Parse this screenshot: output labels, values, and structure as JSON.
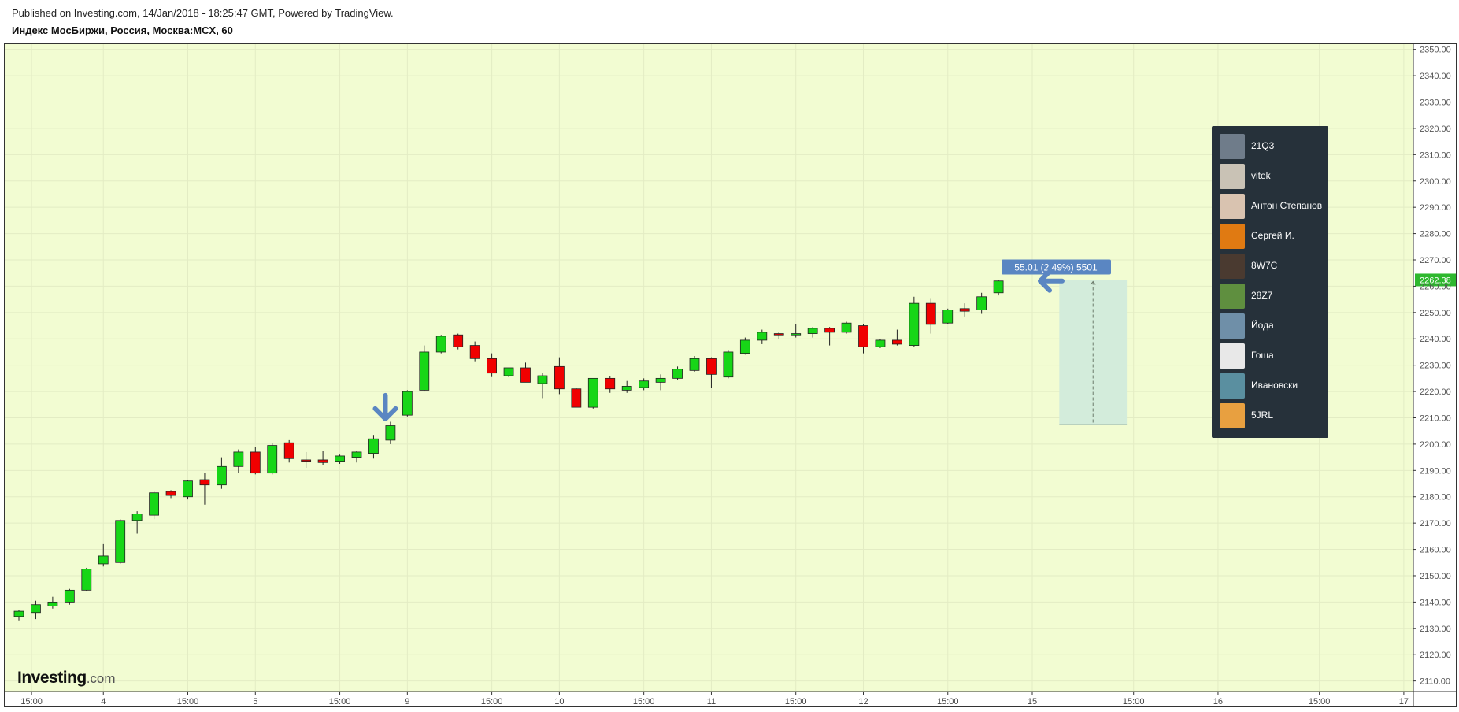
{
  "header": {
    "published": "Published on Investing.com, 14/Jan/2018 - 18:25:47 GMT, Powered by TradingView.",
    "symbol": "Индекс МосБиржи, Россия, Москва:MCX, 60"
  },
  "logo": {
    "main": "Investing",
    "domain": ".com"
  },
  "colors": {
    "background": "#f2fcd2",
    "up": "#17d617",
    "down": "#f00000",
    "price_line": "#2eb82e",
    "annotation": "#5a86c2",
    "legend_bg": "#26313a"
  },
  "legend": {
    "items": [
      {
        "name": "21Q3",
        "avatar_color": "#6f7c8a"
      },
      {
        "name": "vitek",
        "avatar_color": "#c9c2b5"
      },
      {
        "name": "Антон Степанов",
        "avatar_color": "#d9c3b0"
      },
      {
        "name": "Сергей И.",
        "avatar_color": "#e07a12"
      },
      {
        "name": "8W7C",
        "avatar_color": "#4a3a30"
      },
      {
        "name": "28Z7",
        "avatar_color": "#5f8f3f"
      },
      {
        "name": "Йода",
        "avatar_color": "#6f8fa8"
      },
      {
        "name": "Гоша",
        "avatar_color": "#e8e8e8"
      },
      {
        "name": "Ивановски",
        "avatar_color": "#5a8fa0"
      },
      {
        "name": "5JRL",
        "avatar_color": "#e8a040"
      }
    ]
  },
  "chart_data": {
    "type": "candlestick",
    "title": "Индекс МосБиржи, Россия, Москва:MCX, 60",
    "ylim": [
      2106,
      2352
    ],
    "yticks": [
      2110,
      2120,
      2130,
      2140,
      2150,
      2160,
      2170,
      2180,
      2190,
      2200,
      2210,
      2220,
      2230,
      2240,
      2250,
      2260,
      2270,
      2280,
      2290,
      2300,
      2310,
      2320,
      2330,
      2340,
      2350
    ],
    "ytick_labels": [
      "2110.00",
      "2120.00",
      "2130.00",
      "2140.00",
      "2150.00",
      "2160.00",
      "2170.00",
      "2180.00",
      "2190.00",
      "2200.00",
      "2210.00",
      "2220.00",
      "2230.00",
      "2240.00",
      "2250.00",
      "2260.00",
      "2270.00",
      "2280.00",
      "2290.00",
      "2300.00",
      "2310.00",
      "2320.00",
      "2330.00",
      "2340.00",
      "2350.00"
    ],
    "xticks": [
      {
        "bar": 0.75,
        "label": "15:00"
      },
      {
        "bar": 5,
        "label": "4"
      },
      {
        "bar": 10,
        "label": "15:00"
      },
      {
        "bar": 14,
        "label": "5"
      },
      {
        "bar": 19,
        "label": "15:00"
      },
      {
        "bar": 23,
        "label": "9"
      },
      {
        "bar": 28,
        "label": "15:00"
      },
      {
        "bar": 32,
        "label": "10"
      },
      {
        "bar": 37,
        "label": "15:00"
      },
      {
        "bar": 41,
        "label": "11"
      },
      {
        "bar": 46,
        "label": "15:00"
      },
      {
        "bar": 50,
        "label": "12"
      },
      {
        "bar": 55,
        "label": "15:00"
      },
      {
        "bar": 60,
        "label": "15"
      },
      {
        "bar": 66,
        "label": "15:00"
      },
      {
        "bar": 71,
        "label": "16"
      },
      {
        "bar": 77,
        "label": "15:00"
      },
      {
        "bar": 82,
        "label": "17"
      }
    ],
    "candles": [
      {
        "o": 2134.5,
        "h": 2137.0,
        "l": 2133.0,
        "c": 2136.5
      },
      {
        "o": 2136.0,
        "h": 2140.5,
        "l": 2133.5,
        "c": 2139.0
      },
      {
        "o": 2138.5,
        "h": 2142.0,
        "l": 2137.5,
        "c": 2140.0
      },
      {
        "o": 2140.0,
        "h": 2145.0,
        "l": 2139.0,
        "c": 2144.5
      },
      {
        "o": 2144.5,
        "h": 2153.0,
        "l": 2144.0,
        "c": 2152.5
      },
      {
        "o": 2154.5,
        "h": 2162.0,
        "l": 2153.5,
        "c": 2157.5
      },
      {
        "o": 2155.0,
        "h": 2171.5,
        "l": 2154.5,
        "c": 2171.0
      },
      {
        "o": 2171.0,
        "h": 2174.5,
        "l": 2166.0,
        "c": 2173.5
      },
      {
        "o": 2173.0,
        "h": 2182.0,
        "l": 2171.5,
        "c": 2181.5
      },
      {
        "o": 2182.0,
        "h": 2182.5,
        "l": 2179.5,
        "c": 2180.5
      },
      {
        "o": 2180.0,
        "h": 2186.5,
        "l": 2179.0,
        "c": 2186.0
      },
      {
        "o": 2186.5,
        "h": 2189.0,
        "l": 2177.0,
        "c": 2184.5
      },
      {
        "o": 2184.5,
        "h": 2195.0,
        "l": 2183.0,
        "c": 2191.5
      },
      {
        "o": 2191.5,
        "h": 2198.0,
        "l": 2189.0,
        "c": 2197.0
      },
      {
        "o": 2197.0,
        "h": 2199.0,
        "l": 2188.5,
        "c": 2189.0
      },
      {
        "o": 2189.0,
        "h": 2200.5,
        "l": 2188.5,
        "c": 2199.5
      },
      {
        "o": 2200.5,
        "h": 2201.5,
        "l": 2193.0,
        "c": 2194.5
      },
      {
        "o": 2194.0,
        "h": 2197.0,
        "l": 2191.0,
        "c": 2193.5
      },
      {
        "o": 2194.0,
        "h": 2197.5,
        "l": 2192.0,
        "c": 2193.0
      },
      {
        "o": 2193.5,
        "h": 2196.0,
        "l": 2192.5,
        "c": 2195.5
      },
      {
        "o": 2195.0,
        "h": 2197.5,
        "l": 2193.0,
        "c": 2197.0
      },
      {
        "o": 2196.5,
        "h": 2203.5,
        "l": 2194.5,
        "c": 2202.0
      },
      {
        "o": 2201.5,
        "h": 2208.5,
        "l": 2200.0,
        "c": 2207.0
      },
      {
        "o": 2211.0,
        "h": 2220.5,
        "l": 2210.5,
        "c": 2220.0
      },
      {
        "o": 2220.5,
        "h": 2237.5,
        "l": 2220.0,
        "c": 2235.0
      },
      {
        "o": 2235.0,
        "h": 2241.5,
        "l": 2234.5,
        "c": 2241.0
      },
      {
        "o": 2241.5,
        "h": 2242.0,
        "l": 2236.0,
        "c": 2237.0
      },
      {
        "o": 2237.5,
        "h": 2239.0,
        "l": 2231.5,
        "c": 2232.5
      },
      {
        "o": 2232.5,
        "h": 2234.5,
        "l": 2225.5,
        "c": 2227.0
      },
      {
        "o": 2226.0,
        "h": 2229.0,
        "l": 2225.5,
        "c": 2229.0
      },
      {
        "o": 2229.0,
        "h": 2231.0,
        "l": 2223.5,
        "c": 2223.5
      },
      {
        "o": 2223.0,
        "h": 2227.0,
        "l": 2217.5,
        "c": 2226.0
      },
      {
        "o": 2229.5,
        "h": 2233.0,
        "l": 2219.0,
        "c": 2221.0
      },
      {
        "o": 2221.0,
        "h": 2221.5,
        "l": 2214.0,
        "c": 2214.0
      },
      {
        "o": 2214.0,
        "h": 2224.5,
        "l": 2213.5,
        "c": 2225.0
      },
      {
        "o": 2225.0,
        "h": 2226.0,
        "l": 2219.5,
        "c": 2221.0
      },
      {
        "o": 2220.5,
        "h": 2224.0,
        "l": 2219.5,
        "c": 2222.0
      },
      {
        "o": 2221.5,
        "h": 2225.0,
        "l": 2220.5,
        "c": 2224.0
      },
      {
        "o": 2223.5,
        "h": 2226.5,
        "l": 2220.5,
        "c": 2225.0
      },
      {
        "o": 2225.0,
        "h": 2229.5,
        "l": 2224.5,
        "c": 2228.5
      },
      {
        "o": 2228.0,
        "h": 2233.5,
        "l": 2227.5,
        "c": 2232.5
      },
      {
        "o": 2232.5,
        "h": 2233.0,
        "l": 2221.5,
        "c": 2226.5
      },
      {
        "o": 2225.5,
        "h": 2235.5,
        "l": 2225.0,
        "c": 2235.0
      },
      {
        "o": 2234.5,
        "h": 2240.5,
        "l": 2234.0,
        "c": 2239.5
      },
      {
        "o": 2239.5,
        "h": 2243.5,
        "l": 2238.0,
        "c": 2242.5
      },
      {
        "o": 2242.0,
        "h": 2242.5,
        "l": 2240.0,
        "c": 2241.5
      },
      {
        "o": 2241.5,
        "h": 2245.5,
        "l": 2240.5,
        "c": 2242.0
      },
      {
        "o": 2242.0,
        "h": 2244.5,
        "l": 2240.5,
        "c": 2244.0
      },
      {
        "o": 2244.0,
        "h": 2244.5,
        "l": 2237.5,
        "c": 2242.5
      },
      {
        "o": 2242.5,
        "h": 2246.5,
        "l": 2242.0,
        "c": 2246.0
      },
      {
        "o": 2245.0,
        "h": 2245.5,
        "l": 2234.5,
        "c": 2237.0
      },
      {
        "o": 2237.0,
        "h": 2240.0,
        "l": 2236.5,
        "c": 2239.5
      },
      {
        "o": 2239.5,
        "h": 2243.5,
        "l": 2237.5,
        "c": 2238.0
      },
      {
        "o": 2237.5,
        "h": 2256.0,
        "l": 2237.0,
        "c": 2253.5
      },
      {
        "o": 2253.5,
        "h": 2255.5,
        "l": 2242.0,
        "c": 2245.5
      },
      {
        "o": 2246.0,
        "h": 2251.5,
        "l": 2245.5,
        "c": 2251.0
      },
      {
        "o": 2251.5,
        "h": 2253.5,
        "l": 2248.5,
        "c": 2250.5
      },
      {
        "o": 2251.0,
        "h": 2257.5,
        "l": 2249.5,
        "c": 2256.0
      },
      {
        "o": 2257.5,
        "h": 2262.5,
        "l": 2256.5,
        "c": 2262.0
      }
    ],
    "current_price": 2262.38,
    "current_price_label": "2262.38",
    "measure": {
      "label": "55.01 (2.49%) 5501",
      "from_bar": 61.6,
      "to_bar": 65.6,
      "from_price": 2207.37,
      "to_price": 2262.38
    },
    "arrows": [
      {
        "bar": 21.7,
        "price": 2209,
        "direction": "down"
      },
      {
        "bar": 60.0,
        "price": 2262,
        "direction": "left"
      }
    ],
    "grid": true,
    "legend_position": "top-right"
  }
}
